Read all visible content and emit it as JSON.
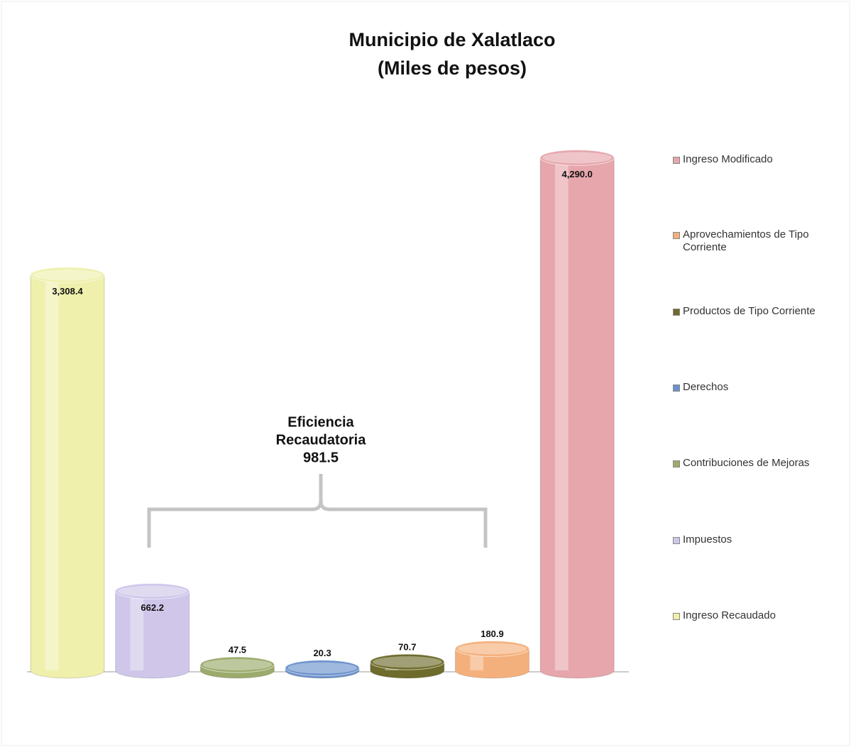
{
  "chart_data": {
    "type": "bar",
    "title": "Municipio  de  Xalatlaco",
    "subtitle": "(Miles de pesos)",
    "ylim": [
      0,
      4500
    ],
    "series": [
      {
        "name": "Ingreso Recaudado",
        "color": "#eef0ac",
        "values": [
          3308.4
        ],
        "value_labels": [
          "3,308.4"
        ]
      },
      {
        "name": "Impuestos",
        "color": "#cfc6ea",
        "values": [
          662.2
        ]
      },
      {
        "name": "Contribuciones de Mejoras",
        "color": "#9cab6c",
        "values": [
          47.5
        ]
      },
      {
        "name": "Derechos",
        "color": "#6c92cc",
        "values": [
          20.3
        ]
      },
      {
        "name": "Productos de Tipo Corriente",
        "color": "#6e6c2c",
        "values": [
          70.7
        ]
      },
      {
        "name": "Aprovechamientos de Tipo Corriente",
        "color": "#f4b07c",
        "values": [
          180.9
        ]
      },
      {
        "name": "Ingreso  Modificado",
        "color": "#e6a6ac",
        "values": [
          4290.0
        ],
        "value_labels": [
          "4,290.0"
        ]
      }
    ],
    "annotation": {
      "lines": [
        "Eficiencia",
        "Recaudatoria"
      ],
      "value": 981.5
    }
  }
}
